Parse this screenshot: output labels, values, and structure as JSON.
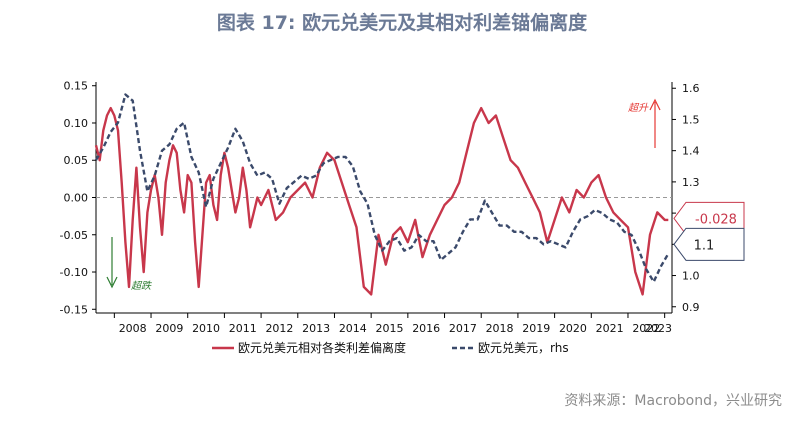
{
  "title": "图表 17: 欧元兑美元及其相对利差锚偏离度",
  "source": "资料来源：Macrobond，兴业研究",
  "colors": {
    "spread": "#c8374b",
    "eurusd": "#3b4a6b",
    "zero": "#999999",
    "arrow_up": "#e53935",
    "arrow_down": "#2e7d32"
  },
  "chart_data": {
    "type": "line",
    "title": "图表 17: 欧元兑美元及其相对利差锚偏离度",
    "xlabel": "",
    "ylabel": "",
    "x_ticks": [
      "2008",
      "2009",
      "2010",
      "2011",
      "2012",
      "2013",
      "2014",
      "2015",
      "2016",
      "2017",
      "2018",
      "2019",
      "2020",
      "2021",
      "2022",
      "2023"
    ],
    "xlim": [
      2007.5,
      2023.2
    ],
    "y_left": {
      "lim": [
        -0.155,
        0.155
      ],
      "ticks": [
        "0.15",
        "0.10",
        "0.05",
        "0.00",
        "-0.05",
        "-0.10",
        "-0.15"
      ],
      "tick_values": [
        0.15,
        0.1,
        0.05,
        0.0,
        -0.05,
        -0.1,
        -0.15
      ]
    },
    "y_right": {
      "lim": [
        0.88,
        1.62
      ],
      "ticks": [
        "1.6",
        "1.5",
        "1.4",
        "1.3",
        "1.2",
        "1.1",
        "1.0",
        "0.9"
      ],
      "tick_values": [
        1.6,
        1.5,
        1.4,
        1.3,
        1.2,
        1.1,
        1.0,
        0.9
      ]
    },
    "series": [
      {
        "name": "欧元兑美元相对各类利差偏离度",
        "axis": "left",
        "style": "solid",
        "x": [
          2007.5,
          2007.6,
          2007.7,
          2007.8,
          2007.9,
          2008.0,
          2008.1,
          2008.2,
          2008.3,
          2008.4,
          2008.5,
          2008.6,
          2008.7,
          2008.8,
          2008.9,
          2009.0,
          2009.1,
          2009.2,
          2009.3,
          2009.4,
          2009.5,
          2009.6,
          2009.7,
          2009.8,
          2009.9,
          2010.0,
          2010.1,
          2010.2,
          2010.3,
          2010.4,
          2010.5,
          2010.6,
          2010.7,
          2010.8,
          2010.9,
          2011.0,
          2011.1,
          2011.2,
          2011.3,
          2011.4,
          2011.5,
          2011.6,
          2011.7,
          2011.8,
          2011.9,
          2012.0,
          2012.2,
          2012.4,
          2012.6,
          2012.8,
          2013.0,
          2013.2,
          2013.4,
          2013.6,
          2013.8,
          2014.0,
          2014.2,
          2014.4,
          2014.6,
          2014.8,
          2015.0,
          2015.2,
          2015.4,
          2015.6,
          2015.8,
          2016.0,
          2016.2,
          2016.4,
          2016.6,
          2016.8,
          2017.0,
          2017.2,
          2017.4,
          2017.6,
          2017.8,
          2018.0,
          2018.2,
          2018.4,
          2018.6,
          2018.8,
          2019.0,
          2019.2,
          2019.4,
          2019.6,
          2019.8,
          2020.0,
          2020.2,
          2020.4,
          2020.6,
          2020.8,
          2021.0,
          2021.2,
          2021.4,
          2021.6,
          2021.8,
          2022.0,
          2022.2,
          2022.4,
          2022.6,
          2022.8,
          2023.0,
          2023.1
        ],
        "values": [
          0.07,
          0.05,
          0.09,
          0.11,
          0.12,
          0.11,
          0.09,
          0.02,
          -0.06,
          -0.12,
          -0.03,
          0.04,
          -0.04,
          -0.1,
          -0.02,
          0.01,
          0.03,
          0.0,
          -0.05,
          0.02,
          0.05,
          0.07,
          0.06,
          0.01,
          -0.02,
          0.03,
          0.02,
          -0.06,
          -0.12,
          -0.05,
          0.02,
          0.03,
          -0.01,
          -0.03,
          0.03,
          0.06,
          0.04,
          0.01,
          -0.02,
          0.0,
          0.04,
          0.01,
          -0.04,
          -0.02,
          0.0,
          -0.01,
          0.01,
          -0.03,
          -0.02,
          0.0,
          0.01,
          0.02,
          0.0,
          0.04,
          0.06,
          0.05,
          0.02,
          -0.01,
          -0.04,
          -0.12,
          -0.13,
          -0.05,
          -0.09,
          -0.05,
          -0.04,
          -0.06,
          -0.03,
          -0.08,
          -0.05,
          -0.03,
          -0.01,
          0.0,
          0.02,
          0.06,
          0.1,
          0.12,
          0.1,
          0.11,
          0.08,
          0.05,
          0.04,
          0.02,
          0.0,
          -0.02,
          -0.06,
          -0.03,
          0.0,
          -0.02,
          0.01,
          0.0,
          0.02,
          0.03,
          0.0,
          -0.02,
          -0.03,
          -0.04,
          -0.1,
          -0.13,
          -0.05,
          -0.02,
          -0.03,
          -0.03
        ]
      },
      {
        "name": "欧元兑美元，rhs",
        "axis": "right",
        "style": "dashed",
        "x": [
          2007.5,
          2007.7,
          2007.9,
          2008.1,
          2008.3,
          2008.5,
          2008.7,
          2008.9,
          2009.1,
          2009.3,
          2009.5,
          2009.7,
          2009.9,
          2010.1,
          2010.3,
          2010.5,
          2010.7,
          2010.9,
          2011.1,
          2011.3,
          2011.5,
          2011.7,
          2011.9,
          2012.1,
          2012.3,
          2012.5,
          2012.7,
          2012.9,
          2013.1,
          2013.3,
          2013.5,
          2013.7,
          2013.9,
          2014.1,
          2014.3,
          2014.5,
          2014.7,
          2014.9,
          2015.1,
          2015.3,
          2015.5,
          2015.7,
          2015.9,
          2016.1,
          2016.3,
          2016.5,
          2016.7,
          2016.9,
          2017.1,
          2017.3,
          2017.5,
          2017.7,
          2017.9,
          2018.1,
          2018.3,
          2018.5,
          2018.7,
          2018.9,
          2019.1,
          2019.3,
          2019.5,
          2019.7,
          2019.9,
          2020.1,
          2020.3,
          2020.5,
          2020.7,
          2020.9,
          2021.1,
          2021.3,
          2021.5,
          2021.7,
          2021.9,
          2022.1,
          2022.3,
          2022.5,
          2022.7,
          2022.9,
          2023.1
        ],
        "values": [
          1.37,
          1.41,
          1.46,
          1.49,
          1.58,
          1.56,
          1.4,
          1.27,
          1.32,
          1.4,
          1.42,
          1.47,
          1.49,
          1.38,
          1.33,
          1.22,
          1.31,
          1.36,
          1.41,
          1.47,
          1.43,
          1.36,
          1.32,
          1.33,
          1.31,
          1.23,
          1.28,
          1.3,
          1.32,
          1.31,
          1.32,
          1.36,
          1.37,
          1.38,
          1.38,
          1.35,
          1.27,
          1.23,
          1.13,
          1.08,
          1.11,
          1.12,
          1.08,
          1.09,
          1.13,
          1.11,
          1.11,
          1.05,
          1.07,
          1.09,
          1.14,
          1.18,
          1.18,
          1.24,
          1.2,
          1.16,
          1.16,
          1.14,
          1.14,
          1.12,
          1.12,
          1.1,
          1.11,
          1.1,
          1.09,
          1.14,
          1.18,
          1.19,
          1.21,
          1.2,
          1.18,
          1.17,
          1.14,
          1.13,
          1.08,
          1.02,
          0.98,
          1.03,
          1.07
        ]
      }
    ],
    "zero_line": 0.0,
    "callouts": [
      {
        "text": "-0.028",
        "axis": "left",
        "value": -0.028
      },
      {
        "text": "1.1",
        "axis": "right",
        "value": 1.1
      }
    ],
    "annotations": [
      {
        "text": "超升",
        "direction": "up"
      },
      {
        "text": "超跌",
        "direction": "down"
      }
    ],
    "legend_position": "bottom"
  }
}
